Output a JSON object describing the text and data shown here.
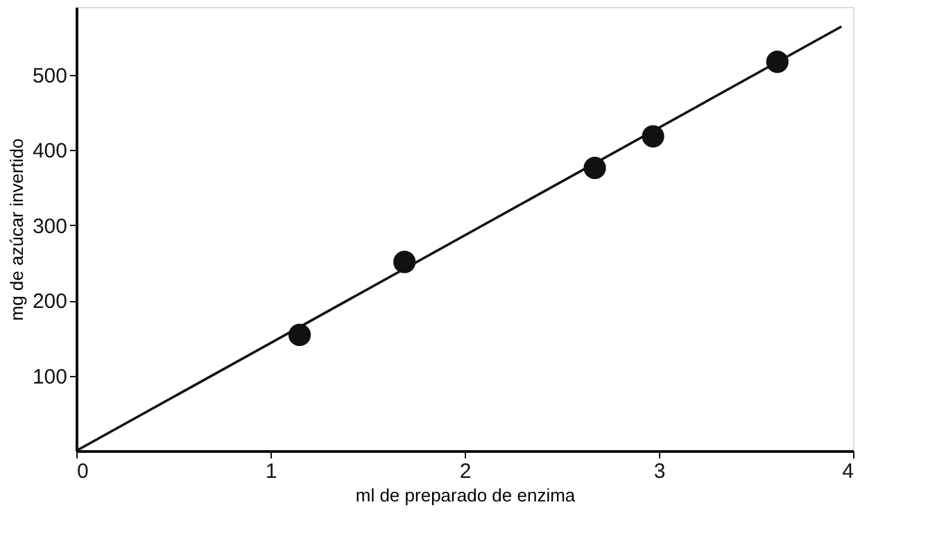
{
  "chart_data": {
    "type": "scatter",
    "xlabel": "ml de preparado de enzima",
    "ylabel": "mg de azúcar invertido",
    "xlim": [
      0,
      4
    ],
    "ylim": [
      0,
      590
    ],
    "xticks": [
      0,
      1,
      2,
      3,
      4
    ],
    "yticks": [
      100,
      200,
      300,
      400,
      500
    ],
    "grid": false,
    "series": [
      {
        "color": "#111111",
        "marker": "circle",
        "x": [
          1.15,
          1.69,
          2.67,
          2.97,
          3.61
        ],
        "values": [
          154,
          251,
          376,
          418,
          517
        ]
      },
      {
        "type": "line",
        "color": "#111111",
        "line_style": "solid",
        "marker": "none",
        "x": [
          0,
          3.94
        ],
        "values": [
          0,
          564
        ]
      }
    ]
  }
}
